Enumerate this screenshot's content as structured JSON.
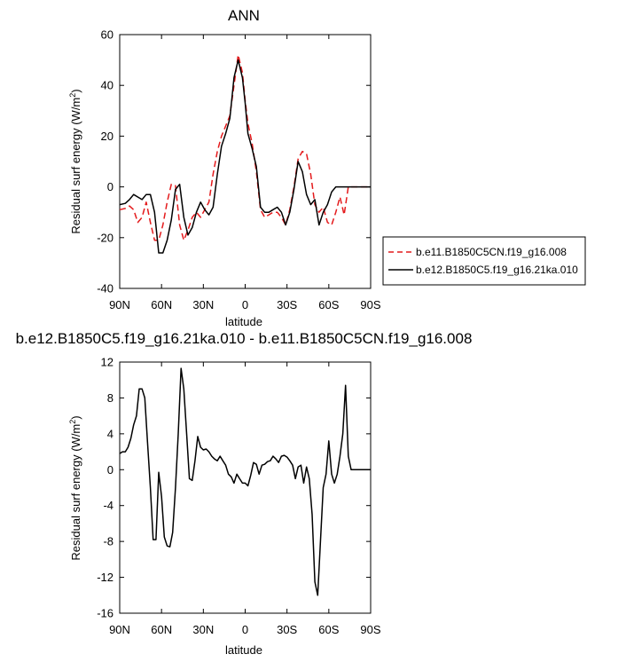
{
  "chart_data": [
    {
      "type": "line",
      "title": "ANN",
      "xlabel": "latitude",
      "ylabel": "Residual surf energy (W/m",
      "ylabel_sup": "2",
      "ylabel_tail": ")",
      "x_is_latitude_south_positive": true,
      "xlim": [
        -90,
        90
      ],
      "ylim": [
        -40,
        60
      ],
      "xticks": [
        {
          "value": -90,
          "label": "90N"
        },
        {
          "value": -60,
          "label": "60N"
        },
        {
          "value": -30,
          "label": "30N"
        },
        {
          "value": 0,
          "label": "0"
        },
        {
          "value": 30,
          "label": "30S"
        },
        {
          "value": 60,
          "label": "60S"
        },
        {
          "value": 90,
          "label": "90S"
        }
      ],
      "yticks": [
        -40,
        -20,
        0,
        20,
        40,
        60
      ],
      "grid": false,
      "legend_position": "outside-right",
      "series": [
        {
          "name": "b.e11.B1850C5CN.f19_g16.008",
          "color": "#e41a1c",
          "dash": "dashed",
          "x": [
            -90,
            -86,
            -83,
            -80,
            -77,
            -74,
            -71,
            -68,
            -65,
            -62,
            -59,
            -56,
            -53,
            -50,
            -47,
            -44,
            -41,
            -38,
            -35,
            -32,
            -29,
            -26,
            -23,
            -20,
            -17,
            -14,
            -11,
            -8,
            -5,
            -2,
            0,
            2,
            5,
            8,
            11,
            14,
            17,
            20,
            23,
            26,
            29,
            32,
            35,
            38,
            41,
            44,
            47,
            50,
            53,
            56,
            59,
            62,
            65,
            68,
            71,
            74,
            77,
            80,
            83,
            86,
            90
          ],
          "y": [
            -9,
            -8.5,
            -7.5,
            -9,
            -14,
            -12,
            -6,
            -14,
            -21,
            -21,
            -15,
            -6,
            1,
            0.5,
            -15,
            -21,
            -17,
            -12,
            -10,
            -12,
            -9,
            -6,
            5,
            14,
            20,
            24,
            28,
            40,
            52,
            45,
            34,
            25,
            17,
            6,
            -9,
            -12,
            -11,
            -10,
            -10,
            -12,
            -15,
            -9,
            0,
            11,
            14,
            13,
            5,
            -7,
            -10,
            -8,
            -14,
            -15,
            -10,
            -4,
            -11,
            0,
            0,
            0,
            0,
            0,
            0
          ]
        },
        {
          "name": "b.e12.B1850C5.f19_g16.21ka.010",
          "color": "#000000",
          "dash": "solid",
          "x": [
            -90,
            -86,
            -83,
            -80,
            -77,
            -74,
            -71,
            -68,
            -65,
            -62,
            -59,
            -56,
            -53,
            -50,
            -47,
            -44,
            -41,
            -38,
            -35,
            -32,
            -29,
            -26,
            -23,
            -20,
            -17,
            -14,
            -11,
            -8,
            -5,
            -2,
            0,
            2,
            5,
            8,
            11,
            14,
            17,
            20,
            23,
            26,
            29,
            32,
            35,
            38,
            41,
            44,
            47,
            50,
            53,
            56,
            59,
            62,
            65,
            68,
            71,
            74,
            77,
            80,
            83,
            86,
            90
          ],
          "y": [
            -7,
            -6.5,
            -5,
            -3,
            -4,
            -5,
            -3,
            -3,
            -10,
            -26,
            -26,
            -21,
            -13,
            -1,
            1,
            -12,
            -19,
            -16,
            -10,
            -6,
            -9,
            -11,
            -8,
            5,
            16,
            21,
            27,
            43,
            50,
            43,
            33,
            21,
            15,
            8,
            -8,
            -10,
            -10,
            -9,
            -8,
            -10,
            -15,
            -10,
            -1,
            10,
            6,
            -3,
            -7,
            -5,
            -15,
            -10,
            -7,
            -2,
            0,
            0,
            0,
            0,
            0,
            0,
            0,
            0,
            0
          ]
        }
      ]
    },
    {
      "type": "line",
      "title": "b.e12.B1850C5.f19_g16.21ka.010 - b.e11.B1850C5CN.f19_g16.008",
      "xlabel": "latitude",
      "ylabel": "Residual surf energy (W/m",
      "ylabel_sup": "2",
      "ylabel_tail": ")",
      "x_is_latitude_south_positive": true,
      "xlim": [
        -90,
        90
      ],
      "ylim": [
        -16,
        12
      ],
      "xticks": [
        {
          "value": -90,
          "label": "90N"
        },
        {
          "value": -60,
          "label": "60N"
        },
        {
          "value": -30,
          "label": "30N"
        },
        {
          "value": 0,
          "label": "0"
        },
        {
          "value": 30,
          "label": "30S"
        },
        {
          "value": 60,
          "label": "60S"
        },
        {
          "value": 90,
          "label": "90S"
        }
      ],
      "yticks": [
        -16,
        -12,
        -8,
        -4,
        0,
        4,
        8,
        12
      ],
      "grid": false,
      "series": [
        {
          "color": "#000000",
          "dash": "solid",
          "x": [
            -90,
            -88,
            -86,
            -84,
            -82,
            -80,
            -78,
            -76,
            -74,
            -72,
            -70,
            -68,
            -66,
            -64,
            -62,
            -60,
            -58,
            -56,
            -54,
            -52,
            -50,
            -48,
            -46,
            -44,
            -42,
            -40,
            -38,
            -36,
            -34,
            -32,
            -30,
            -28,
            -26,
            -24,
            -22,
            -20,
            -18,
            -16,
            -14,
            -12,
            -10,
            -8,
            -6,
            -4,
            -2,
            0,
            2,
            4,
            6,
            8,
            10,
            12,
            14,
            16,
            18,
            20,
            22,
            24,
            26,
            28,
            30,
            32,
            34,
            36,
            38,
            40,
            42,
            44,
            46,
            48,
            50,
            52,
            54,
            56,
            58,
            60,
            62,
            64,
            66,
            68,
            70,
            72,
            74,
            76,
            78,
            80,
            82,
            84,
            86,
            88,
            90
          ],
          "y": [
            1.8,
            2.0,
            2.0,
            2.5,
            3.5,
            5.0,
            6.0,
            9.0,
            9.0,
            8.0,
            3.0,
            -2.0,
            -7.8,
            -7.8,
            -0.3,
            -3.0,
            -7.5,
            -8.5,
            -8.6,
            -7.0,
            -2.0,
            4.0,
            11.3,
            9.0,
            4.0,
            -1.0,
            -1.2,
            1.0,
            3.7,
            2.5,
            2.2,
            2.3,
            2.0,
            1.5,
            1.2,
            1.0,
            1.5,
            1.0,
            0.5,
            -0.5,
            -0.8,
            -1.5,
            -0.5,
            -1.0,
            -1.5,
            -1.5,
            -1.8,
            -0.6,
            0.8,
            0.6,
            -0.5,
            0.5,
            0.6,
            0.9,
            1.0,
            1.5,
            1.2,
            0.8,
            1.5,
            1.6,
            1.4,
            1.0,
            0.5,
            -1.0,
            0.3,
            0.5,
            -1.5,
            0.3,
            -1.0,
            -5.0,
            -12.5,
            -14.0,
            -8.0,
            -2.0,
            -0.5,
            3.2,
            -0.5,
            -1.5,
            -0.5,
            1.5,
            4.0,
            9.4,
            1.5,
            0.0,
            0.0,
            0.0,
            0.0,
            0.0,
            0.0,
            0.0,
            0.0
          ]
        }
      ]
    }
  ]
}
